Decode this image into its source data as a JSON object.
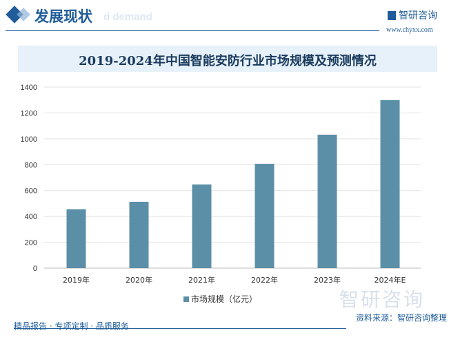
{
  "header": {
    "title": "发展现状",
    "ghost_text": "d demand",
    "logo_name": "智研咨询",
    "logo_url": "www.chyxx.com"
  },
  "chart_data": {
    "type": "bar",
    "title": "2019-2024年中国智能安防行业市场规模及预测情况",
    "categories": [
      "2019年",
      "2020年",
      "2021年",
      "2022年",
      "2023年",
      "2024年E"
    ],
    "series": [
      {
        "name": "市场规模（亿元）",
        "values": [
          455,
          513,
          647,
          807,
          1032,
          1299
        ],
        "color": "#5b8fa8"
      }
    ],
    "ylim": [
      0,
      1400
    ],
    "yticks": [
      0,
      200,
      400,
      600,
      800,
      1000,
      1200,
      1400
    ],
    "grid": true,
    "legend": "bottom"
  },
  "footer": {
    "left": "精品报告 · 专项定制 · 品质服务",
    "source": "资料来源：智研咨询整理",
    "watermark": "智研咨询"
  }
}
